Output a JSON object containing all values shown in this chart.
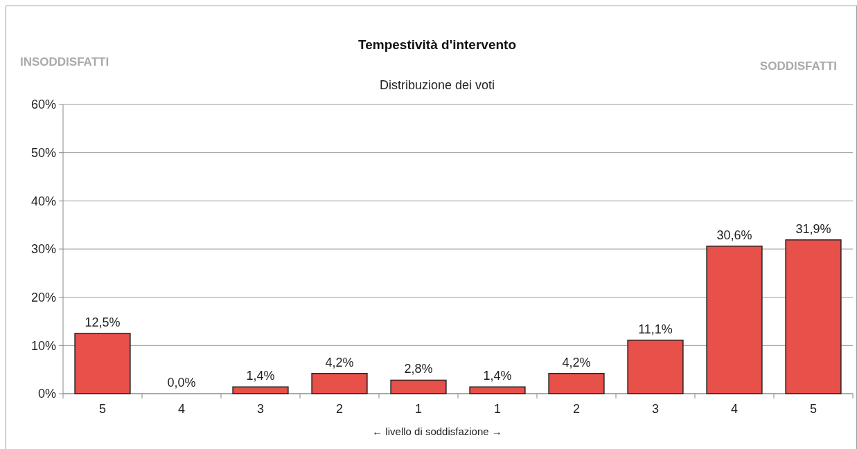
{
  "chart_data": {
    "type": "bar",
    "title": "Tempestività d'intervento",
    "subtitle": "Distribuzione dei voti",
    "xlabel": "← livello di soddisfazione →",
    "annotations": [
      "INSODDISFATTI",
      "SODDISFATTI"
    ],
    "categories": [
      "5",
      "4",
      "3",
      "2",
      "1",
      "1",
      "2",
      "3",
      "4",
      "5"
    ],
    "values": [
      12.5,
      0.0,
      1.4,
      4.2,
      2.8,
      1.4,
      4.2,
      11.1,
      30.6,
      31.9
    ],
    "value_labels": [
      "12,5%",
      "0,0%",
      "1,4%",
      "4,2%",
      "2,8%",
      "1,4%",
      "4,2%",
      "11,1%",
      "30,6%",
      "31,9%"
    ],
    "color": "#e8504a",
    "ylim": [
      0,
      60
    ],
    "yticks": [
      {
        "value": 0,
        "label": "0%"
      },
      {
        "value": 10,
        "label": "10%"
      },
      {
        "value": 20,
        "label": "20%"
      },
      {
        "value": 30,
        "label": "30%"
      },
      {
        "value": 40,
        "label": "40%"
      },
      {
        "value": 50,
        "label": "50%"
      },
      {
        "value": 60,
        "label": "60%"
      }
    ],
    "grid": "y"
  }
}
